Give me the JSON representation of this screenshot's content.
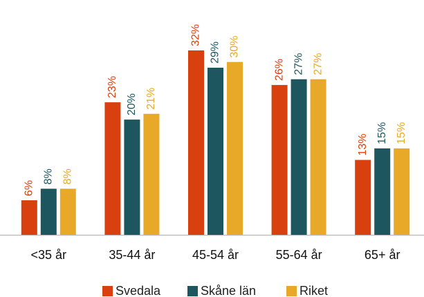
{
  "chart_data": {
    "type": "bar",
    "categories": [
      "<35 år",
      "35-44 år",
      "45-54 år",
      "55-64 år",
      "65+ år"
    ],
    "series": [
      {
        "name": "Svedala",
        "color": "#d9400f",
        "values": [
          6,
          23,
          32,
          26,
          13
        ],
        "value_labels": [
          "6%",
          "23%",
          "32%",
          "26%",
          "13%"
        ]
      },
      {
        "name": "Skåne län",
        "color": "#1e5660",
        "values": [
          8,
          20,
          29,
          27,
          15
        ],
        "value_labels": [
          "8%",
          "20%",
          "29%",
          "27%",
          "15%"
        ]
      },
      {
        "name": "Riket",
        "color": "#e8a928",
        "values": [
          8,
          21,
          30,
          27,
          15
        ],
        "value_labels": [
          "8%",
          "21%",
          "30%",
          "27%",
          "15%"
        ]
      }
    ],
    "legend": "bottom"
  }
}
